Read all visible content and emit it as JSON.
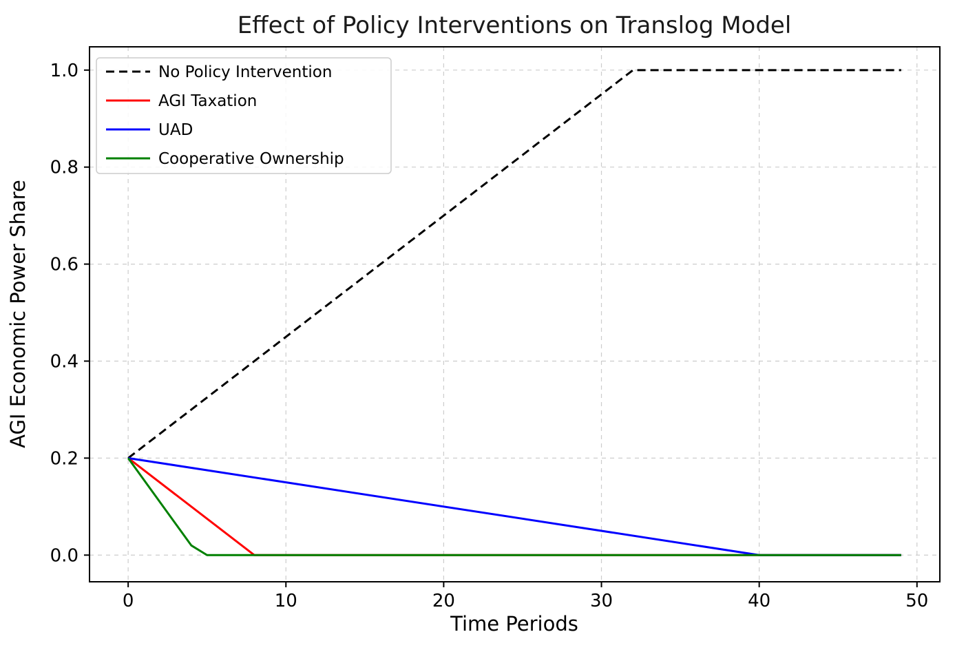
{
  "chart_data": {
    "type": "line",
    "title": "Effect of Policy Interventions on Translog Model",
    "xlabel": "Time Periods",
    "ylabel": "AGI Economic Power Share",
    "xlim": [
      -2.45,
      51.45
    ],
    "ylim": [
      -0.055,
      1.048
    ],
    "xticks": [
      0,
      10,
      20,
      30,
      40,
      50
    ],
    "xtick_labels": [
      "0",
      "10",
      "20",
      "30",
      "40",
      "50"
    ],
    "yticks": [
      0.0,
      0.2,
      0.4,
      0.6,
      0.8,
      1.0
    ],
    "ytick_labels": [
      "0.0",
      "0.2",
      "0.4",
      "0.6",
      "0.8",
      "1.0"
    ],
    "grid": true,
    "grid_color": "#cccccc",
    "legend_position": "upper left",
    "series": [
      {
        "name": "No Policy Intervention",
        "color": "#000000",
        "linestyle": "dashed",
        "points": [
          [
            0,
            0.2
          ],
          [
            32,
            1.0
          ],
          [
            49,
            1.0
          ]
        ]
      },
      {
        "name": "AGI Taxation",
        "color": "#ff0000",
        "linestyle": "solid",
        "points": [
          [
            0,
            0.2
          ],
          [
            8,
            0.0
          ],
          [
            49,
            0.0
          ]
        ]
      },
      {
        "name": "UAD",
        "color": "#0000ff",
        "linestyle": "solid",
        "points": [
          [
            0,
            0.2
          ],
          [
            40,
            0.0
          ],
          [
            49,
            0.0
          ]
        ]
      },
      {
        "name": "Cooperative Ownership",
        "color": "#008000",
        "linestyle": "solid",
        "points": [
          [
            0,
            0.2
          ],
          [
            4,
            0.02
          ],
          [
            5,
            0.0
          ],
          [
            49,
            0.0
          ]
        ]
      }
    ]
  }
}
